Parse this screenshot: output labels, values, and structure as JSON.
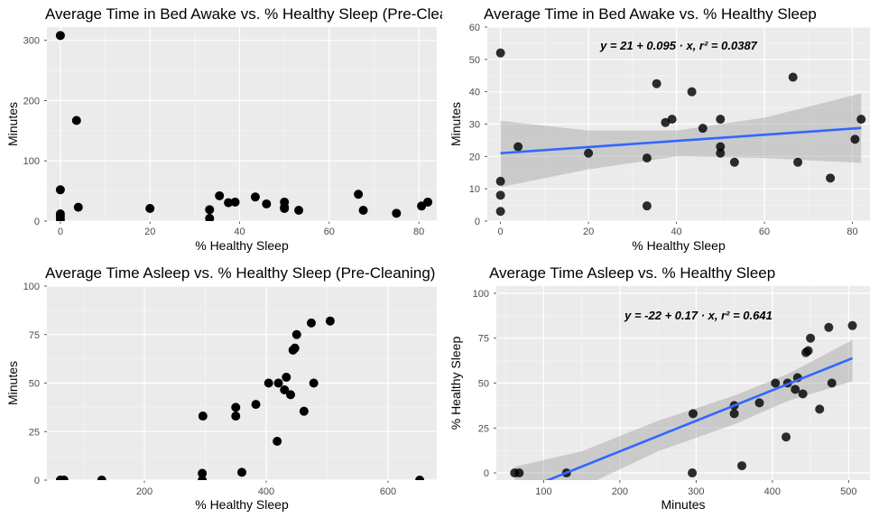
{
  "chart_data": [
    {
      "type": "scatter",
      "title": "Average Time in Bed Awake vs. % Healthy Sleep (Pre-Cleaning)",
      "xlabel": "% Healthy Sleep",
      "ylabel": "Minutes",
      "xlim": [
        -3,
        84
      ],
      "ylim": [
        0,
        322
      ],
      "xticks": [
        0,
        20,
        40,
        60,
        80
      ],
      "yticks": [
        0,
        100,
        200,
        300
      ],
      "equation": "",
      "regression": null,
      "points": [
        [
          0,
          308
        ],
        [
          0,
          52
        ],
        [
          0,
          12
        ],
        [
          0,
          8
        ],
        [
          0,
          3
        ],
        [
          3.6,
          167
        ],
        [
          4,
          23
        ],
        [
          20,
          21
        ],
        [
          33.3,
          19
        ],
        [
          33.3,
          4.5
        ],
        [
          35.5,
          42
        ],
        [
          37.5,
          30.5
        ],
        [
          39,
          31.5
        ],
        [
          43.5,
          40
        ],
        [
          46,
          28.5
        ],
        [
          50,
          31.5
        ],
        [
          50,
          23
        ],
        [
          50,
          21
        ],
        [
          53.2,
          18
        ],
        [
          66.5,
          44.5
        ],
        [
          67.6,
          18
        ],
        [
          75,
          13
        ],
        [
          80.6,
          25
        ],
        [
          82,
          31.5
        ]
      ]
    },
    {
      "type": "scatter",
      "title": "Average Time in Bed Awake vs. % Healthy Sleep",
      "xlabel": "% Healthy Sleep",
      "ylabel": "Minutes",
      "xlim": [
        -3,
        84
      ],
      "ylim": [
        0,
        60
      ],
      "xticks": [
        0,
        20,
        40,
        60,
        80
      ],
      "yticks": [
        0,
        10,
        20,
        30,
        40,
        50,
        60
      ],
      "equation": "y = 21 + 0.095 · x,  r² = 0.0387",
      "regression": {
        "intercept": 21,
        "slope": 0.095,
        "x0": 0,
        "x1": 82
      },
      "ribbon": [
        [
          0,
          31,
          10.5
        ],
        [
          20,
          28,
          16
        ],
        [
          40,
          28,
          20
        ],
        [
          60,
          32,
          19.5
        ],
        [
          82,
          39.5,
          18
        ]
      ],
      "points": [
        [
          0,
          52
        ],
        [
          0,
          12.3
        ],
        [
          0,
          8
        ],
        [
          0,
          3
        ],
        [
          4,
          23
        ],
        [
          20,
          21
        ],
        [
          33.3,
          19.5
        ],
        [
          33.3,
          4.7
        ],
        [
          35.5,
          42.5
        ],
        [
          37.5,
          30.5
        ],
        [
          39,
          31.5
        ],
        [
          43.5,
          40
        ],
        [
          46,
          28.7
        ],
        [
          50,
          31.5
        ],
        [
          50,
          23
        ],
        [
          50,
          21
        ],
        [
          53.2,
          18.2
        ],
        [
          66.5,
          44.5
        ],
        [
          67.6,
          18.2
        ],
        [
          75,
          13.3
        ],
        [
          80.6,
          25.3
        ],
        [
          82,
          31.5
        ]
      ]
    },
    {
      "type": "scatter",
      "title": "Average Time Asleep vs. % Healthy Sleep (Pre-Cleaning)",
      "xlabel": "% Healthy Sleep",
      "ylabel": "Minutes",
      "xlim": [
        40,
        680
      ],
      "ylim": [
        0,
        100
      ],
      "xticks": [
        200,
        400,
        600
      ],
      "yticks": [
        0,
        25,
        50,
        75,
        100
      ],
      "equation": "",
      "regression": null,
      "points": [
        [
          62,
          0
        ],
        [
          68,
          0
        ],
        [
          130,
          0
        ],
        [
          295,
          0
        ],
        [
          295,
          3.5
        ],
        [
          296,
          33
        ],
        [
          350,
          33
        ],
        [
          350,
          37.5
        ],
        [
          360,
          4
        ],
        [
          383,
          39
        ],
        [
          404,
          50
        ],
        [
          418,
          20
        ],
        [
          420,
          50
        ],
        [
          430,
          46.5
        ],
        [
          433,
          53
        ],
        [
          440,
          44
        ],
        [
          444,
          67
        ],
        [
          447,
          68
        ],
        [
          450,
          75
        ],
        [
          462,
          35.5
        ],
        [
          474,
          81
        ],
        [
          478,
          50
        ],
        [
          505,
          82
        ],
        [
          652,
          0
        ]
      ]
    },
    {
      "type": "scatter",
      "title": "Average Time Asleep vs. % Healthy Sleep",
      "xlabel": "Minutes",
      "ylabel": "% Healthy Sleep",
      "xlim": [
        38,
        528
      ],
      "ylim": [
        -4,
        104
      ],
      "xticks": [
        100,
        200,
        300,
        400,
        500
      ],
      "yticks": [
        0,
        25,
        50,
        75,
        100
      ],
      "equation": "y = -22 + 0.17 · x,  r² = 0.641",
      "regression": {
        "intercept": -22,
        "slope": 0.17,
        "x0": 62,
        "x1": 505
      },
      "ribbon": [
        [
          62,
          3.5,
          -26
        ],
        [
          150,
          12,
          -8
        ],
        [
          250,
          29,
          12
        ],
        [
          350,
          43,
          27
        ],
        [
          420,
          55,
          40
        ],
        [
          505,
          74,
          51
        ]
      ],
      "points": [
        [
          62,
          0
        ],
        [
          68,
          0
        ],
        [
          130,
          0
        ],
        [
          295,
          0
        ],
        [
          296,
          33
        ],
        [
          350,
          33
        ],
        [
          350,
          37.5
        ],
        [
          360,
          4
        ],
        [
          383,
          39
        ],
        [
          404,
          50
        ],
        [
          418,
          20
        ],
        [
          420,
          50
        ],
        [
          430,
          46.5
        ],
        [
          433,
          53
        ],
        [
          440,
          44
        ],
        [
          444,
          67
        ],
        [
          447,
          68
        ],
        [
          450,
          75
        ],
        [
          462,
          35.5
        ],
        [
          474,
          81
        ],
        [
          478,
          50
        ],
        [
          505,
          82
        ]
      ]
    }
  ]
}
